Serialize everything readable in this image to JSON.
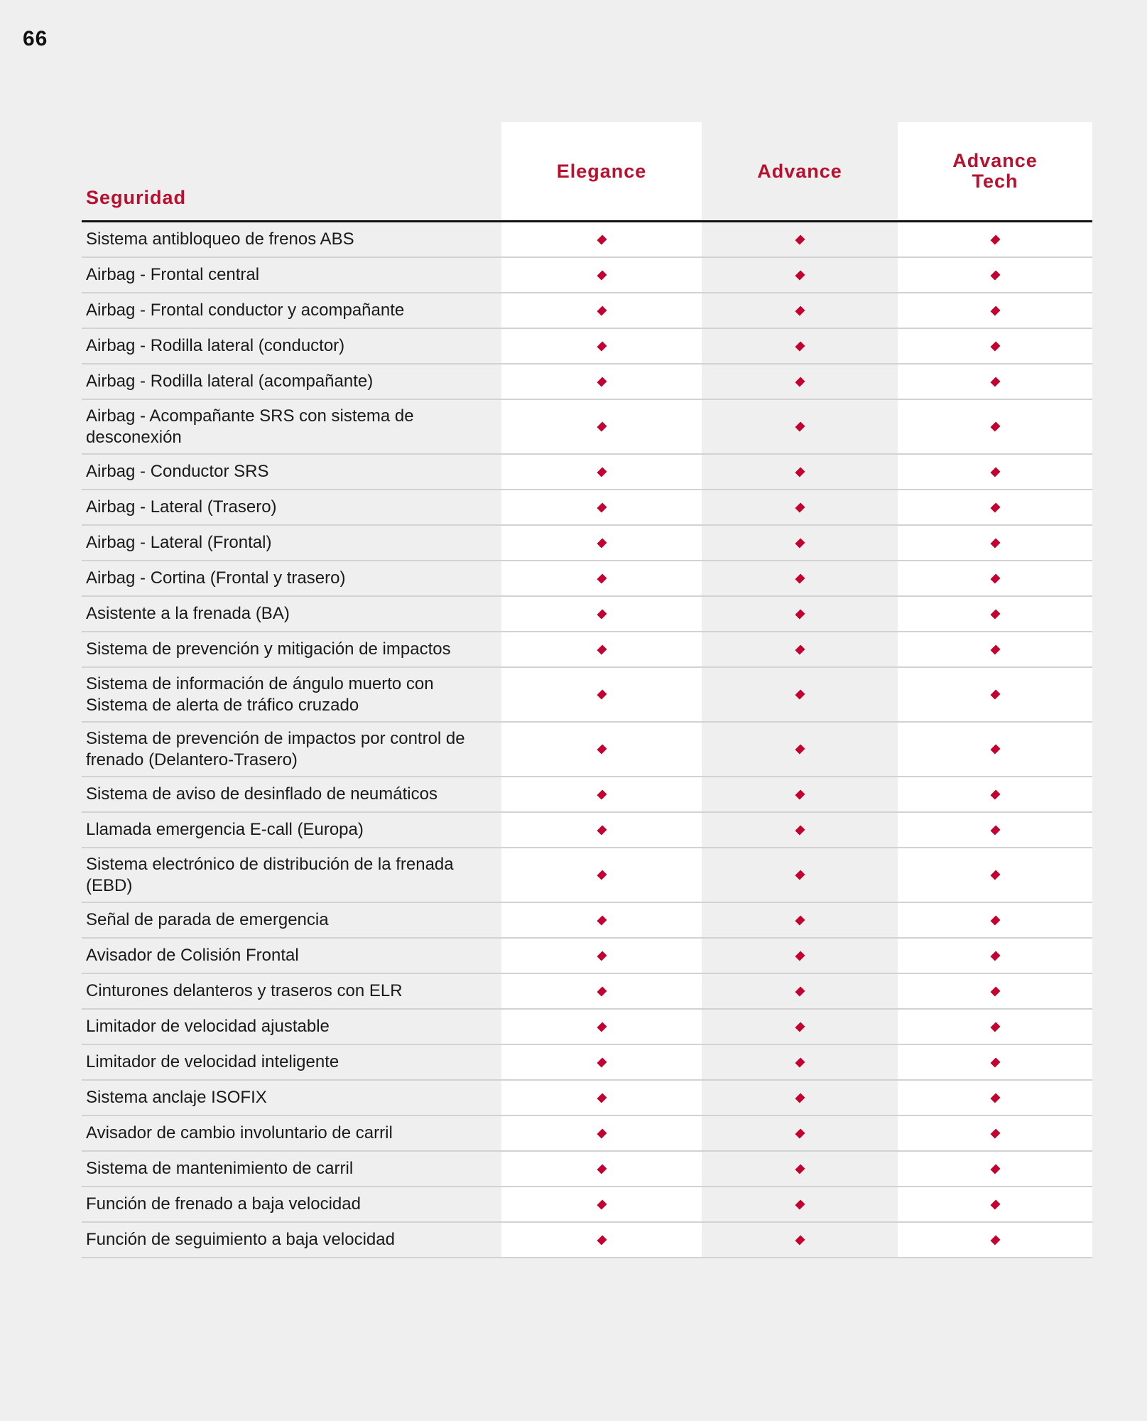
{
  "page_number": "66",
  "accent_color": "#c3002f",
  "table": {
    "section_title": "Seguridad",
    "columns": [
      "Elegance",
      "Advance",
      "Advance\nTech"
    ],
    "mark_icon": "diamond-icon",
    "rows": [
      {
        "label": "Sistema antibloqueo de frenos ABS",
        "values": [
          true,
          true,
          true
        ]
      },
      {
        "label": "Airbag - Frontal central",
        "values": [
          true,
          true,
          true
        ]
      },
      {
        "label": "Airbag - Frontal conductor y acompañante",
        "values": [
          true,
          true,
          true
        ]
      },
      {
        "label": "Airbag - Rodilla lateral (conductor)",
        "values": [
          true,
          true,
          true
        ]
      },
      {
        "label": "Airbag - Rodilla lateral (acompañante)",
        "values": [
          true,
          true,
          true
        ]
      },
      {
        "label": "Airbag - Acompañante SRS con sistema de desconexión",
        "values": [
          true,
          true,
          true
        ]
      },
      {
        "label": "Airbag - Conductor SRS",
        "values": [
          true,
          true,
          true
        ]
      },
      {
        "label": "Airbag - Lateral (Trasero)",
        "values": [
          true,
          true,
          true
        ]
      },
      {
        "label": "Airbag - Lateral (Frontal)",
        "values": [
          true,
          true,
          true
        ]
      },
      {
        "label": "Airbag - Cortina (Frontal y trasero)",
        "values": [
          true,
          true,
          true
        ]
      },
      {
        "label": "Asistente a la frenada (BA)",
        "values": [
          true,
          true,
          true
        ]
      },
      {
        "label": "Sistema de prevención y mitigación de impactos",
        "values": [
          true,
          true,
          true
        ]
      },
      {
        "label": "Sistema de información de ángulo muerto con Sistema de alerta de tráfico cruzado",
        "values": [
          true,
          true,
          true
        ]
      },
      {
        "label": "Sistema de prevención de impactos por control de frenado (Delantero-Trasero)",
        "values": [
          true,
          true,
          true
        ]
      },
      {
        "label": "Sistema de aviso de desinflado de neumáticos",
        "values": [
          true,
          true,
          true
        ]
      },
      {
        "label": "Llamada emergencia E-call (Europa)",
        "values": [
          true,
          true,
          true
        ]
      },
      {
        "label": "Sistema electrónico de distribución de la frenada (EBD)",
        "values": [
          true,
          true,
          true
        ]
      },
      {
        "label": "Señal de parada de emergencia",
        "values": [
          true,
          true,
          true
        ]
      },
      {
        "label": "Avisador de Colisión Frontal",
        "values": [
          true,
          true,
          true
        ]
      },
      {
        "label": "Cinturones delanteros y traseros con ELR",
        "values": [
          true,
          true,
          true
        ]
      },
      {
        "label": "Limitador de velocidad ajustable",
        "values": [
          true,
          true,
          true
        ]
      },
      {
        "label": "Limitador de velocidad inteligente",
        "values": [
          true,
          true,
          true
        ]
      },
      {
        "label": "Sistema anclaje ISOFIX",
        "values": [
          true,
          true,
          true
        ]
      },
      {
        "label": "Avisador de cambio involuntario de carril",
        "values": [
          true,
          true,
          true
        ]
      },
      {
        "label": "Sistema de mantenimiento de carril",
        "values": [
          true,
          true,
          true
        ]
      },
      {
        "label": "Función de frenado a baja velocidad",
        "values": [
          true,
          true,
          true
        ]
      },
      {
        "label": "Función de seguimiento a baja velocidad",
        "values": [
          true,
          true,
          true
        ]
      }
    ]
  }
}
